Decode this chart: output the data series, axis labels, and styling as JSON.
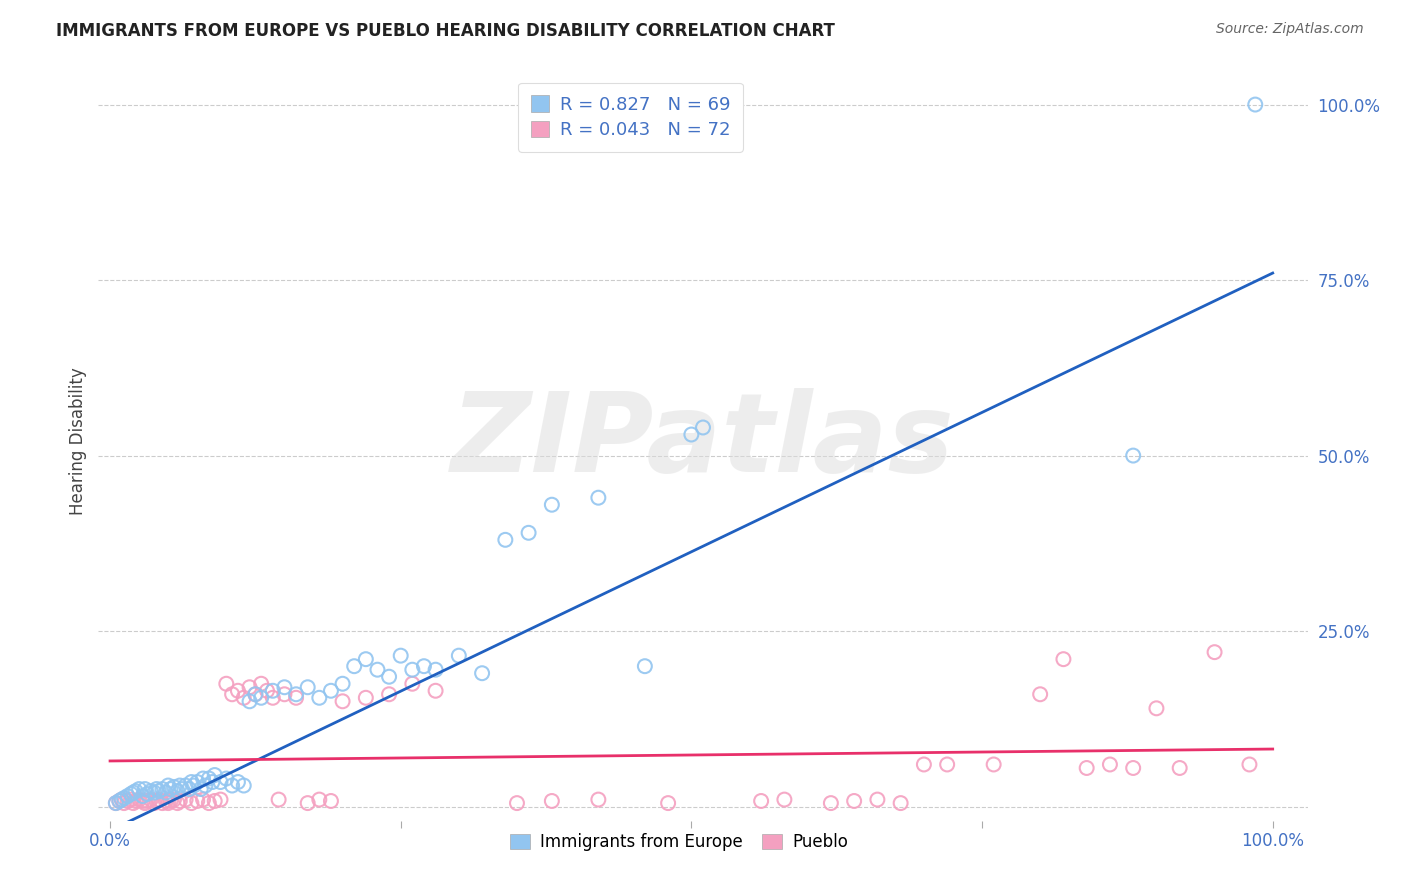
{
  "title": "IMMIGRANTS FROM EUROPE VS PUEBLO HEARING DISABILITY CORRELATION CHART",
  "source": "Source: ZipAtlas.com",
  "ylabel": "Hearing Disability",
  "blue_color": "#92C5F0",
  "pink_color": "#F4A0C0",
  "blue_line_color": "#2060C0",
  "pink_line_color": "#E8306A",
  "legend_R_blue": "R = 0.827",
  "legend_N_blue": "N = 69",
  "legend_R_pink": "R = 0.043",
  "legend_N_pink": "N = 72",
  "legend_label_blue": "Immigrants from Europe",
  "legend_label_pink": "Pueblo",
  "watermark": "ZIPatlas",
  "blue_scatter_x": [
    0.005,
    0.008,
    0.01,
    0.012,
    0.015,
    0.018,
    0.02,
    0.022,
    0.025,
    0.028,
    0.03,
    0.032,
    0.035,
    0.038,
    0.04,
    0.042,
    0.045,
    0.048,
    0.05,
    0.052,
    0.055,
    0.058,
    0.06,
    0.062,
    0.065,
    0.068,
    0.07,
    0.072,
    0.075,
    0.078,
    0.08,
    0.082,
    0.085,
    0.088,
    0.09,
    0.095,
    0.1,
    0.105,
    0.11,
    0.115,
    0.12,
    0.125,
    0.13,
    0.14,
    0.15,
    0.16,
    0.17,
    0.18,
    0.19,
    0.2,
    0.21,
    0.22,
    0.23,
    0.24,
    0.25,
    0.26,
    0.27,
    0.28,
    0.3,
    0.32,
    0.34,
    0.36,
    0.38,
    0.42,
    0.46,
    0.5,
    0.51,
    0.88,
    0.985
  ],
  "blue_scatter_y": [
    0.005,
    0.008,
    0.01,
    0.012,
    0.015,
    0.018,
    0.02,
    0.022,
    0.025,
    0.015,
    0.025,
    0.018,
    0.022,
    0.02,
    0.025,
    0.022,
    0.025,
    0.02,
    0.03,
    0.025,
    0.028,
    0.022,
    0.03,
    0.025,
    0.03,
    0.025,
    0.035,
    0.03,
    0.035,
    0.025,
    0.04,
    0.03,
    0.04,
    0.035,
    0.045,
    0.035,
    0.04,
    0.03,
    0.035,
    0.03,
    0.15,
    0.16,
    0.155,
    0.165,
    0.17,
    0.16,
    0.17,
    0.155,
    0.165,
    0.175,
    0.2,
    0.21,
    0.195,
    0.185,
    0.215,
    0.195,
    0.2,
    0.195,
    0.215,
    0.19,
    0.38,
    0.39,
    0.43,
    0.44,
    0.2,
    0.53,
    0.54,
    0.5,
    1.0
  ],
  "pink_scatter_x": [
    0.005,
    0.008,
    0.01,
    0.012,
    0.015,
    0.018,
    0.02,
    0.022,
    0.025,
    0.028,
    0.03,
    0.032,
    0.035,
    0.038,
    0.04,
    0.042,
    0.045,
    0.048,
    0.05,
    0.052,
    0.055,
    0.058,
    0.06,
    0.065,
    0.07,
    0.075,
    0.08,
    0.085,
    0.09,
    0.095,
    0.1,
    0.105,
    0.11,
    0.115,
    0.12,
    0.125,
    0.13,
    0.135,
    0.14,
    0.145,
    0.15,
    0.16,
    0.17,
    0.18,
    0.19,
    0.2,
    0.22,
    0.24,
    0.26,
    0.28,
    0.35,
    0.38,
    0.42,
    0.48,
    0.56,
    0.58,
    0.62,
    0.64,
    0.66,
    0.68,
    0.7,
    0.72,
    0.76,
    0.8,
    0.82,
    0.84,
    0.86,
    0.88,
    0.9,
    0.92,
    0.95,
    0.98
  ],
  "pink_scatter_y": [
    0.005,
    0.008,
    0.01,
    0.005,
    0.008,
    0.01,
    0.005,
    0.008,
    0.01,
    0.008,
    0.005,
    0.008,
    0.01,
    0.005,
    0.008,
    0.01,
    0.005,
    0.008,
    0.005,
    0.008,
    0.01,
    0.005,
    0.008,
    0.01,
    0.005,
    0.008,
    0.01,
    0.005,
    0.008,
    0.01,
    0.175,
    0.16,
    0.165,
    0.155,
    0.17,
    0.16,
    0.175,
    0.165,
    0.155,
    0.01,
    0.16,
    0.155,
    0.005,
    0.01,
    0.008,
    0.15,
    0.155,
    0.16,
    0.175,
    0.165,
    0.005,
    0.008,
    0.01,
    0.005,
    0.008,
    0.01,
    0.005,
    0.008,
    0.01,
    0.005,
    0.06,
    0.06,
    0.06,
    0.16,
    0.21,
    0.055,
    0.06,
    0.055,
    0.14,
    0.055,
    0.22,
    0.06
  ]
}
